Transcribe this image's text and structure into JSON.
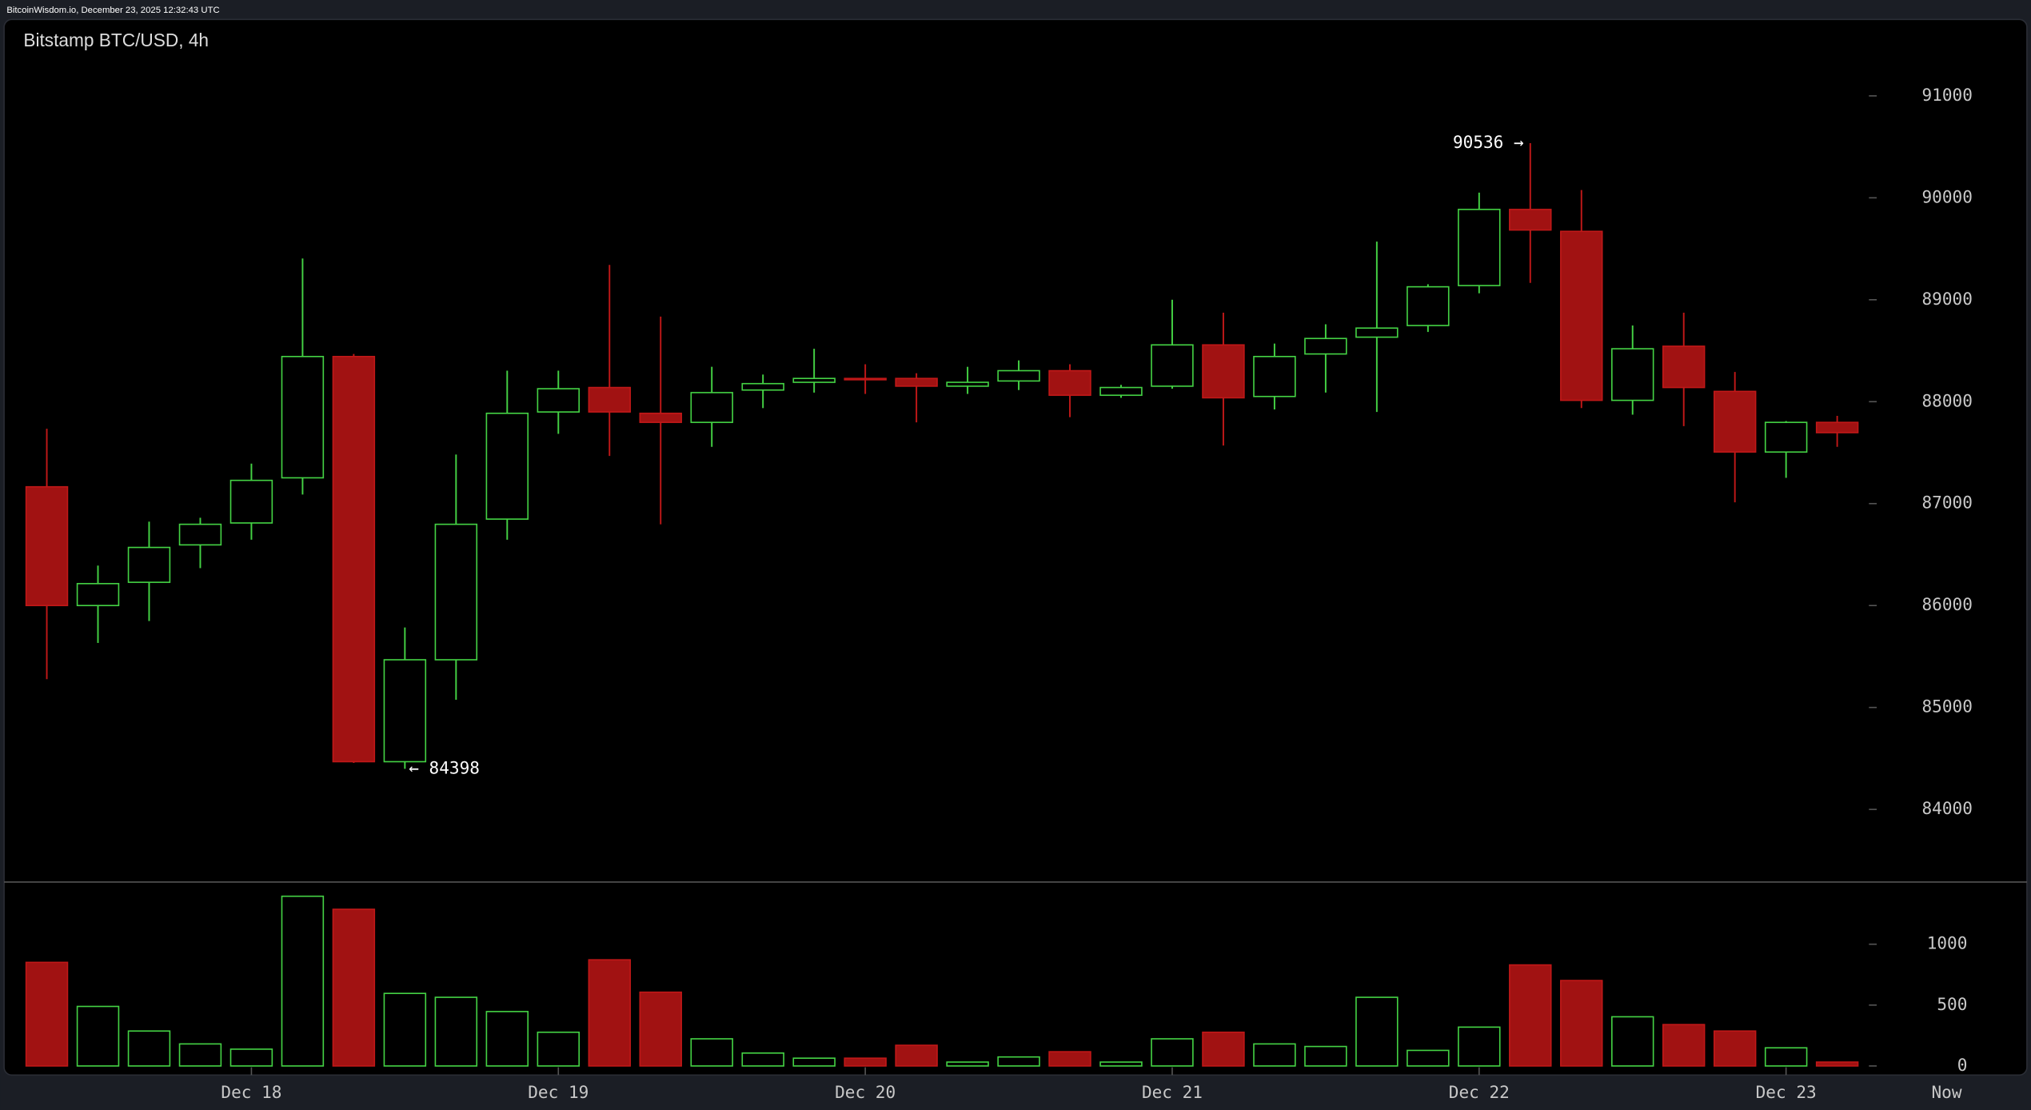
{
  "header": "BitcoinWisdom.io, December 23, 2025 12:32:43 UTC",
  "chart_data": [
    {
      "type": "candlestick",
      "title": "Bitstamp BTC/USD, 4h",
      "open": [
        87165,
        86000,
        86228,
        86595,
        86810,
        87253,
        88443,
        84468,
        85468,
        86848,
        87899,
        88139,
        87886,
        87797,
        88114,
        88190,
        88228,
        88228,
        88152,
        88203,
        88304,
        88063,
        88152,
        88557,
        88051,
        88468,
        88633,
        88747,
        89139,
        89886,
        89671,
        88013,
        88544,
        88101,
        87506,
        87797
      ],
      "high": [
        87734,
        86392,
        86823,
        86861,
        87392,
        89405,
        88468,
        85785,
        87481,
        88304,
        88304,
        89342,
        88835,
        88342,
        88266,
        88519,
        88367,
        88279,
        88342,
        88405,
        88367,
        88165,
        89000,
        88873,
        88570,
        88759,
        89570,
        89152,
        90051,
        90536,
        90076,
        88747,
        88873,
        88291,
        87810,
        87861
      ],
      "low": [
        85278,
        85633,
        85848,
        86367,
        86646,
        87089,
        84456,
        84398,
        85076,
        86646,
        87684,
        87468,
        86797,
        87557,
        87937,
        88089,
        88076,
        87797,
        88076,
        88114,
        87848,
        88038,
        88127,
        87570,
        87924,
        88089,
        87899,
        88684,
        89063,
        89165,
        87937,
        87873,
        87760,
        87013,
        87253,
        87557
      ],
      "close": [
        86000,
        86215,
        86570,
        86797,
        87228,
        88443,
        84468,
        85468,
        86797,
        87886,
        88127,
        87899,
        87797,
        88089,
        88177,
        88228,
        88215,
        88152,
        88190,
        88304,
        88063,
        88139,
        88557,
        88038,
        88443,
        88620,
        88722,
        89127,
        89886,
        89684,
        88013,
        88519,
        88139,
        87506,
        87797,
        87696
      ],
      "up_color": "#44d244",
      "down_color": "#a11212",
      "ylim": [
        83300,
        91750
      ],
      "yticks": [
        84000,
        85000,
        86000,
        87000,
        88000,
        89000,
        90000,
        91000
      ],
      "annotations": [
        "90536 →",
        "← 84398"
      ]
    },
    {
      "type": "bar",
      "categories": [
        null,
        null,
        null,
        null,
        "Dec 18",
        null,
        null,
        null,
        null,
        null,
        "Dec 19",
        null,
        null,
        null,
        null,
        null,
        "Dec 20",
        null,
        null,
        null,
        null,
        null,
        "Dec 21",
        null,
        null,
        null,
        null,
        null,
        "Dec 22",
        null,
        null,
        null,
        null,
        null,
        "Dec 23",
        null
      ],
      "values": [
        851,
        489,
        287,
        181,
        138,
        1394,
        1287,
        596,
        564,
        447,
        277,
        872,
        606,
        223,
        106,
        64,
        64,
        170,
        32,
        74,
        117,
        32,
        223,
        277,
        181,
        160,
        564,
        128,
        319,
        830,
        702,
        404,
        340,
        287,
        149,
        32
      ],
      "ylim": [
        0,
        1500
      ],
      "yticks": [
        0,
        500,
        1000
      ],
      "end_label": "Now"
    }
  ]
}
